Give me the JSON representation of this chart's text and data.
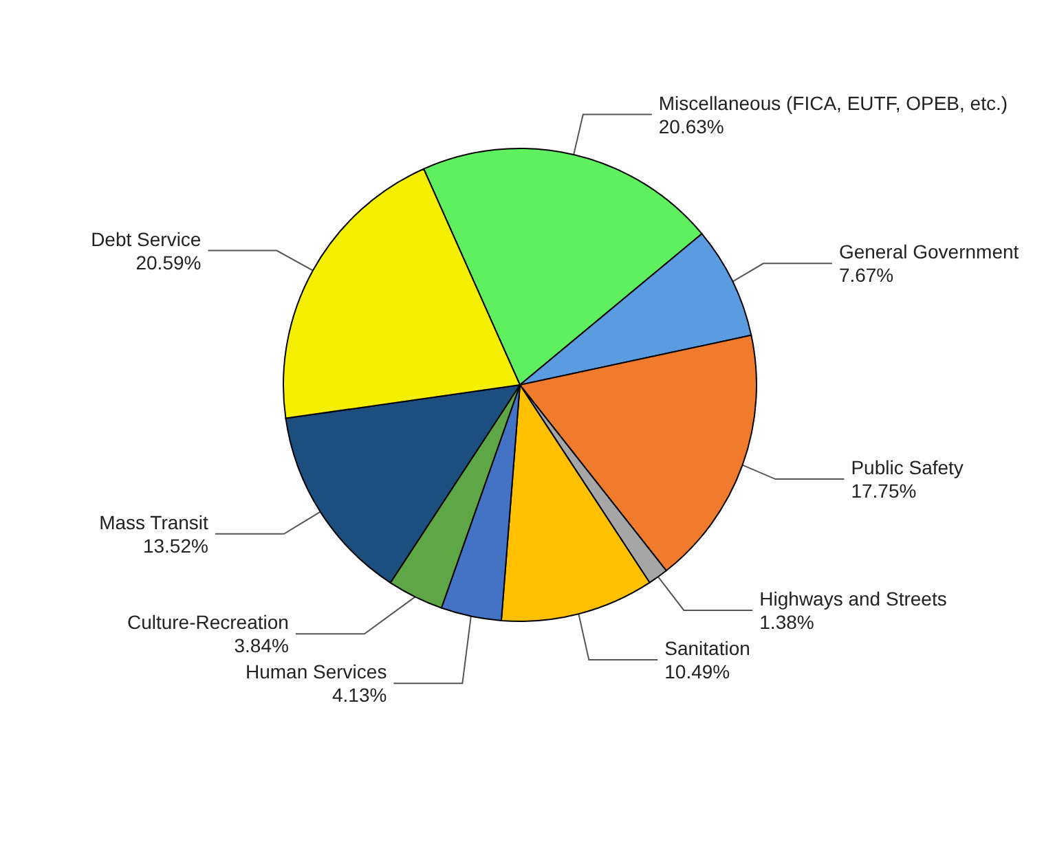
{
  "chart_data": {
    "type": "pie",
    "categories": [
      "Miscellaneous (FICA, EUTF, OPEB, etc.)",
      "General Government",
      "Public Safety",
      "Highways and Streets",
      "Sanitation",
      "Human Services",
      "Culture-Recreation",
      "Mass Transit",
      "Debt Service"
    ],
    "values": [
      20.63,
      7.67,
      17.75,
      1.38,
      10.49,
      4.13,
      3.84,
      13.52,
      20.59
    ],
    "value_labels": [
      "20.63%",
      "7.67%",
      "17.75%",
      "1.38%",
      "10.49%",
      "4.13%",
      "3.84%",
      "13.52%",
      "20.59%"
    ],
    "colors": [
      "#5ef05e",
      "#5b9be0",
      "#f07b2c",
      "#a6a6a6",
      "#ffc000",
      "#4472c4",
      "#5ea646",
      "#1c4f80",
      "#f5f000"
    ],
    "legend": false
  }
}
